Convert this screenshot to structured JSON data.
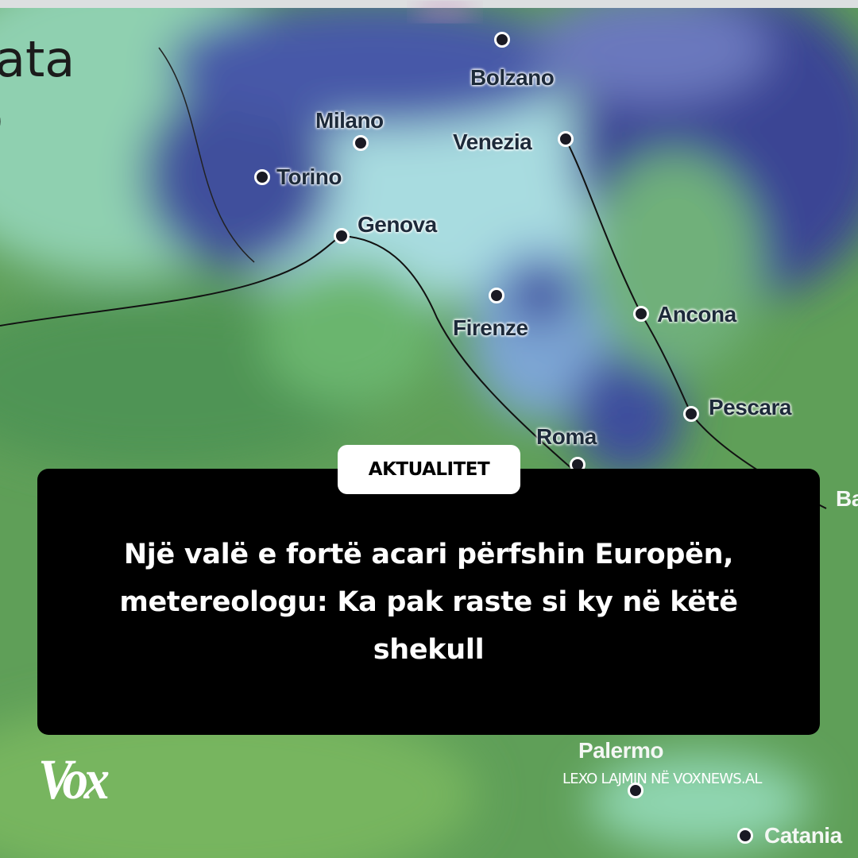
{
  "map": {
    "partial_labels": [
      "ata",
      "o",
      "Ba"
    ],
    "cities": [
      {
        "name": "Bolzano"
      },
      {
        "name": "Milano"
      },
      {
        "name": "Venezia"
      },
      {
        "name": "Torino"
      },
      {
        "name": "Genova"
      },
      {
        "name": "Firenze"
      },
      {
        "name": "Ancona"
      },
      {
        "name": "Pescara"
      },
      {
        "name": "Roma"
      },
      {
        "name": "Palermo"
      },
      {
        "name": "Catania"
      }
    ]
  },
  "post": {
    "category": "AKTUALITET",
    "headline": "Një valë e fortë acari përfshin Europën, metereologu: Ka pak raste si ky në këtë shekull"
  },
  "brand": {
    "logo": "Vox",
    "cta": "LEXO LAJMIN NË VOXNEWS.AL"
  }
}
